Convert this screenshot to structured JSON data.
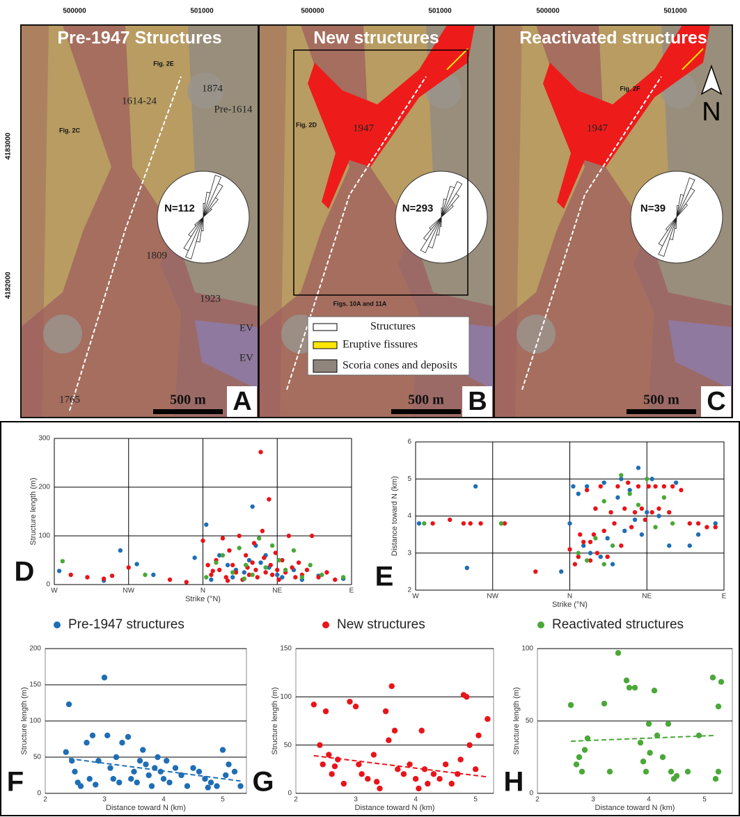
{
  "map_axis": {
    "easting": [
      "500000",
      "501000"
    ],
    "northing": [
      "4183000",
      "4182000"
    ]
  },
  "maps": [
    {
      "title": "Pre-1947 Structures",
      "letter": "A",
      "scale": "500 m",
      "rose_n": "N=112",
      "labels": [
        "1614-24",
        "1874",
        "Pre-1614",
        "Fig. 2E",
        "Fig. 2C",
        "1809",
        "1923",
        "EV",
        "EV",
        "1765"
      ]
    },
    {
      "title": "New structures",
      "letter": "B",
      "scale": "500 m",
      "rose_n": "N=293",
      "labels": [
        "Fig. 2D",
        "1947",
        "Figs. 10A and 11A"
      ],
      "legend": [
        "Structures",
        "Eruptive fissures",
        "Scoria cones and deposits"
      ]
    },
    {
      "title": "Reactivated structures",
      "letter": "C",
      "scale": "500 m",
      "rose_n": "N=39",
      "labels": [
        "Fig. 2F",
        "1947",
        "N"
      ]
    }
  ],
  "chart_data": [
    {
      "type": "scatter",
      "letter": "D",
      "ylabel": "Structure length (m)",
      "xlabel": "Strike (°N)",
      "xlim": [
        -90,
        90
      ],
      "ylim": [
        0,
        300
      ],
      "xticks": [
        {
          "value": -90,
          "label": "W"
        },
        {
          "value": -45,
          "label": "NW"
        },
        {
          "value": 0,
          "label": "N"
        },
        {
          "value": 45,
          "label": "NE"
        },
        {
          "value": 90,
          "label": "E"
        }
      ],
      "yticks": [
        0,
        100,
        200,
        300
      ],
      "grid": true,
      "xgrid": true,
      "series": [
        {
          "name": "Pre-1947 structures",
          "color": "#1f6eb5",
          "x": [
            -87,
            -50,
            -40,
            -30,
            -5,
            2,
            10,
            15,
            20,
            25,
            30,
            32,
            35,
            40,
            45,
            48,
            55,
            60,
            70,
            85,
            5,
            18,
            28,
            38,
            -60
          ],
          "values": [
            28,
            70,
            42,
            20,
            55,
            123,
            60,
            40,
            30,
            25,
            160,
            80,
            45,
            35,
            20,
            15,
            30,
            10,
            18,
            12,
            10,
            15,
            50,
            60,
            8
          ]
        },
        {
          "name": "New structures",
          "color": "#e8141a",
          "x": [
            -80,
            -70,
            -60,
            -55,
            -45,
            -20,
            -10,
            0,
            3,
            5,
            8,
            10,
            12,
            14,
            16,
            18,
            20,
            22,
            24,
            26,
            27,
            28,
            30,
            31,
            32,
            33,
            35,
            36,
            37,
            38,
            40,
            41,
            42,
            44,
            45,
            46,
            48,
            50,
            52,
            54,
            56,
            58,
            60,
            63,
            66,
            70,
            75,
            80,
            6,
            15
          ],
          "values": [
            20,
            15,
            12,
            18,
            35,
            10,
            5,
            90,
            40,
            20,
            50,
            30,
            95,
            15,
            70,
            40,
            25,
            100,
            10,
            60,
            35,
            20,
            45,
            85,
            30,
            15,
            272,
            110,
            55,
            25,
            175,
            40,
            20,
            65,
            30,
            10,
            50,
            25,
            100,
            35,
            15,
            45,
            20,
            30,
            100,
            15,
            25,
            10,
            28,
            8
          ]
        },
        {
          "name": "Reactivated structures",
          "color": "#4aa838",
          "x": [
            -85,
            -35,
            2,
            8,
            12,
            18,
            22,
            26,
            30,
            34,
            38,
            42,
            46,
            50,
            55,
            60,
            65,
            72,
            85,
            25
          ],
          "values": [
            48,
            20,
            15,
            45,
            60,
            25,
            75,
            40,
            20,
            95,
            35,
            80,
            50,
            30,
            70,
            15,
            40,
            20,
            15,
            12
          ]
        }
      ]
    },
    {
      "type": "scatter",
      "letter": "E",
      "ylabel": "Distance toward N (km)",
      "xlabel": "Strike (°N)",
      "xlim": [
        -90,
        90
      ],
      "ylim": [
        2,
        6
      ],
      "xticks": [
        {
          "value": -90,
          "label": "W"
        },
        {
          "value": -45,
          "label": "NW"
        },
        {
          "value": 0,
          "label": "N"
        },
        {
          "value": 45,
          "label": "NE"
        },
        {
          "value": 90,
          "label": "E"
        }
      ],
      "yticks": [
        2,
        3,
        4,
        5,
        6
      ],
      "grid": true,
      "xgrid": true,
      "series": [
        {
          "name": "Pre-1947 structures",
          "color": "#1f6eb5",
          "x": [
            -88,
            -55,
            -60,
            -5,
            0,
            2,
            5,
            8,
            10,
            12,
            15,
            18,
            20,
            22,
            25,
            28,
            30,
            32,
            35,
            38,
            40,
            42,
            45,
            48,
            52,
            58,
            62,
            70,
            75,
            85
          ],
          "values": [
            3.8,
            4.8,
            2.6,
            2.5,
            3.8,
            4.8,
            4.6,
            3.2,
            4.8,
            3.0,
            4.2,
            2.9,
            4.9,
            3.4,
            2.7,
            4.5,
            5.0,
            3.6,
            4.7,
            3.9,
            5.3,
            3.5,
            4.1,
            5.0,
            4.0,
            3.2,
            4.9,
            3.2,
            3.5,
            3.8
          ]
        },
        {
          "name": "New structures",
          "color": "#e8141a",
          "x": [
            -80,
            -70,
            -62,
            -58,
            -52,
            -40,
            -38,
            -20,
            0,
            3,
            5,
            8,
            10,
            12,
            14,
            15,
            16,
            18,
            20,
            22,
            24,
            26,
            28,
            30,
            32,
            34,
            36,
            38,
            40,
            42,
            44,
            46,
            48,
            50,
            52,
            55,
            58,
            60,
            65,
            70,
            75,
            80,
            85,
            6,
            12
          ],
          "values": [
            3.8,
            3.9,
            3.8,
            3.8,
            3.8,
            3.8,
            3.8,
            2.5,
            3.1,
            2.7,
            2.9,
            3.3,
            4.7,
            2.8,
            3.5,
            4.2,
            3.0,
            4.8,
            3.6,
            2.9,
            4.1,
            3.8,
            4.8,
            3.2,
            4.2,
            4.9,
            3.7,
            4.1,
            4.8,
            4.2,
            3.9,
            4.8,
            4.1,
            4.8,
            4.2,
            4.8,
            4.1,
            4.8,
            4.7,
            3.8,
            3.8,
            3.7,
            3.7,
            3.5,
            3.3
          ]
        },
        {
          "name": "Reactivated structures",
          "color": "#4aa838",
          "x": [
            -85,
            -40,
            5,
            10,
            15,
            20,
            25,
            30,
            35,
            40,
            45,
            50,
            55,
            60,
            20
          ],
          "values": [
            3.8,
            3.8,
            3.0,
            2.8,
            3.4,
            4.4,
            3.2,
            5.1,
            4.6,
            4.3,
            5.0,
            3.7,
            4.5,
            3.8,
            2.7
          ]
        }
      ]
    },
    {
      "type": "scatter",
      "letter": "F",
      "ylabel": "Structure length (m)",
      "xlabel": "Distance toward N (km)",
      "xlim": [
        2,
        5.4
      ],
      "ylim": [
        0,
        200
      ],
      "xticks": [
        2,
        3,
        4,
        5
      ],
      "yticks": [
        0,
        50,
        100,
        150,
        200
      ],
      "grid": true,
      "xgrid": false,
      "series": [
        {
          "name": "Pre-1947 structures",
          "color": "#1f6eb5",
          "x": [
            2.35,
            2.4,
            2.45,
            2.5,
            2.55,
            2.6,
            2.7,
            2.75,
            2.8,
            2.85,
            2.9,
            3.0,
            3.05,
            3.1,
            3.15,
            3.2,
            3.25,
            3.3,
            3.4,
            3.45,
            3.5,
            3.6,
            3.65,
            3.7,
            3.75,
            3.8,
            3.85,
            3.9,
            3.95,
            4.0,
            4.05,
            4.1,
            4.2,
            4.3,
            4.4,
            4.5,
            4.6,
            4.7,
            4.8,
            4.9,
            5.0,
            5.05,
            5.1,
            5.2,
            5.3,
            3.55,
            4.75
          ],
          "values": [
            57,
            123,
            45,
            30,
            15,
            10,
            70,
            20,
            80,
            12,
            45,
            160,
            80,
            35,
            20,
            50,
            15,
            70,
            78,
            20,
            30,
            45,
            60,
            40,
            25,
            10,
            35,
            50,
            30,
            20,
            45,
            15,
            35,
            25,
            10,
            35,
            30,
            20,
            15,
            10,
            60,
            25,
            40,
            30,
            10,
            15,
            8
          ]
        }
      ],
      "trend": {
        "color": "#1f6eb5",
        "x": [
          2.4,
          5.3
        ],
        "values": [
          48,
          17
        ]
      }
    },
    {
      "type": "scatter",
      "letter": "G",
      "ylabel": "Structure length (m)",
      "xlabel": "Distance toward N (km)",
      "xlim": [
        2,
        5.3
      ],
      "ylim": [
        0,
        150
      ],
      "xticks": [
        2,
        3,
        4,
        5
      ],
      "yticks": [
        0,
        50,
        100,
        150
      ],
      "grid": true,
      "xgrid": false,
      "series": [
        {
          "name": "New structures",
          "color": "#e8141a",
          "x": [
            2.3,
            2.4,
            2.45,
            2.5,
            2.55,
            2.6,
            2.7,
            2.8,
            2.9,
            3.0,
            3.05,
            3.1,
            3.2,
            3.3,
            3.4,
            3.5,
            3.55,
            3.6,
            3.65,
            3.7,
            3.8,
            3.9,
            4.0,
            4.1,
            4.15,
            4.2,
            4.3,
            4.4,
            4.5,
            4.6,
            4.7,
            4.75,
            4.8,
            4.85,
            4.9,
            5.0,
            5.05,
            5.2,
            4.05,
            3.35,
            2.65
          ],
          "values": [
            92,
            50,
            30,
            85,
            40,
            20,
            35,
            10,
            95,
            90,
            30,
            20,
            15,
            40,
            5,
            85,
            55,
            111,
            65,
            25,
            20,
            30,
            15,
            65,
            25,
            10,
            20,
            15,
            30,
            10,
            20,
            35,
            102,
            100,
            50,
            25,
            60,
            77,
            5,
            12,
            28
          ]
        }
      ],
      "trend": {
        "color": "#e8141a",
        "x": [
          2.3,
          5.2
        ],
        "values": [
          39,
          17
        ]
      }
    },
    {
      "type": "scatter",
      "letter": "H",
      "ylabel": "Structure length (m)",
      "xlabel": "Distance toward N (km)",
      "xlim": [
        2,
        5.5
      ],
      "ylim": [
        0,
        100
      ],
      "xticks": [
        2,
        3,
        4,
        5
      ],
      "yticks": [
        0,
        50,
        100
      ],
      "grid": true,
      "xgrid": false,
      "series": [
        {
          "name": "Reactivated structures",
          "color": "#4aa838",
          "x": [
            2.6,
            2.7,
            2.75,
            2.8,
            2.85,
            2.9,
            3.2,
            3.3,
            3.45,
            3.6,
            3.65,
            3.75,
            3.85,
            3.9,
            3.95,
            4.0,
            4.02,
            4.1,
            4.15,
            4.25,
            4.35,
            4.4,
            4.45,
            4.5,
            4.7,
            4.9,
            5.15,
            5.2,
            5.25,
            5.3,
            5.25
          ],
          "values": [
            61,
            20,
            25,
            15,
            30,
            38,
            62,
            15,
            97,
            78,
            73,
            73,
            35,
            22,
            15,
            48,
            28,
            71,
            40,
            25,
            48,
            15,
            10,
            12,
            15,
            40,
            80,
            10,
            60,
            77,
            15
          ]
        }
      ],
      "trend": {
        "color": "#4aa838",
        "x": [
          2.6,
          5.2
        ],
        "values": [
          36,
          40
        ]
      }
    }
  ]
}
